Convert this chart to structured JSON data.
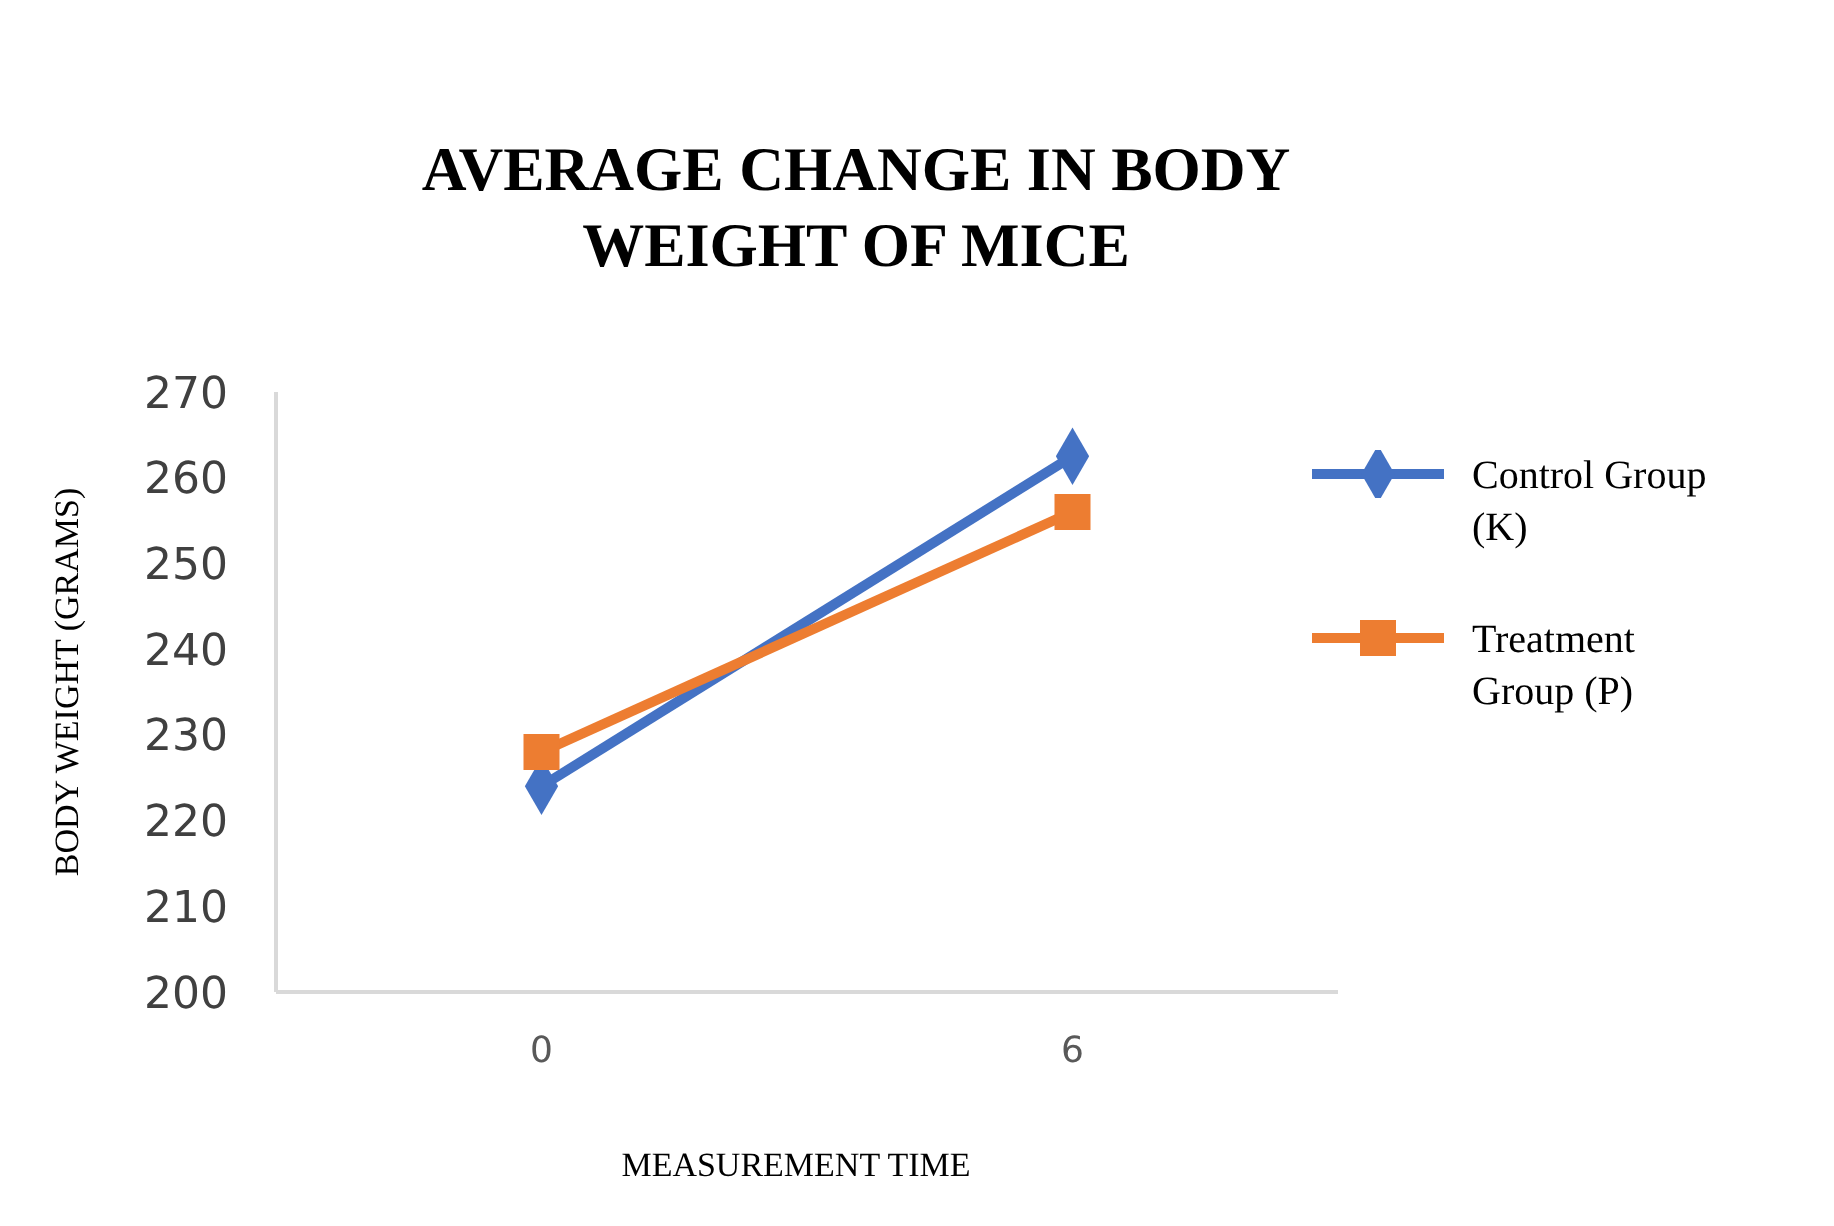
{
  "chart_data": {
    "type": "line",
    "title": "AVERAGE CHANGE IN BODY WEIGHT OF MICE",
    "xlabel": "MEASUREMENT TIME",
    "ylabel": "BODY WEIGHT (GRAMS)",
    "x": [
      0,
      6
    ],
    "xlim": [
      -3,
      9
    ],
    "xticks": [
      0,
      6
    ],
    "series": [
      {
        "name": "Control Group (K)",
        "color": "#4472c4",
        "values": [
          224,
          262.5
        ],
        "marker": "diamond"
      },
      {
        "name": "Treatment Group (P)",
        "color": "#ed7d31",
        "values": [
          228,
          256
        ],
        "marker": "square"
      }
    ],
    "ylim": [
      200,
      270
    ],
    "yticks": [
      200,
      210,
      220,
      230,
      240,
      250,
      260,
      270
    ],
    "grid": false,
    "legend": "right"
  }
}
